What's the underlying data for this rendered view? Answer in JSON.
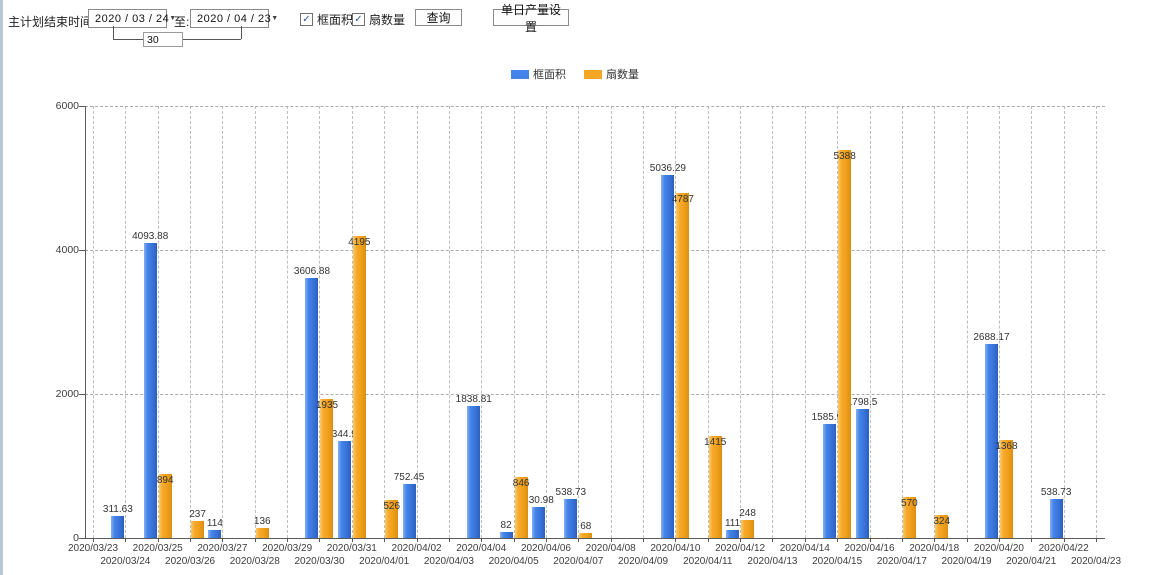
{
  "toolbar": {
    "plan_end_label": "主计划结束时间:",
    "date_from": "2020 / 03 / 24",
    "to_label": "至:",
    "date_to": "2020 / 04 / 23",
    "span_days": "30",
    "filters": [
      {
        "label": "框面积",
        "checked": true
      },
      {
        "label": "扇数量",
        "checked": true
      }
    ],
    "query_button": "查询",
    "daily_output_button": "单日产量设置"
  },
  "legend": {
    "items": [
      {
        "label": "框面积",
        "color": "#4383EA"
      },
      {
        "label": "扇数量",
        "color": "#F5A623"
      }
    ]
  },
  "chart_data": {
    "type": "bar",
    "title": "",
    "xlabel": "",
    "ylabel": "",
    "ylim": [
      0,
      6000
    ],
    "yticks": [
      0,
      2000,
      4000,
      6000
    ],
    "grid": true,
    "legend_position": "top-center",
    "x_label_layout": "staggered-two-rows",
    "categories": [
      "2020/03/23",
      "2020/03/24",
      "2020/03/25",
      "2020/03/26",
      "2020/03/27",
      "2020/03/28",
      "2020/03/29",
      "2020/03/30",
      "2020/03/31",
      "2020/04/01",
      "2020/04/02",
      "2020/04/03",
      "2020/04/04",
      "2020/04/05",
      "2020/04/06",
      "2020/04/07",
      "2020/04/08",
      "2020/04/09",
      "2020/04/10",
      "2020/04/11",
      "2020/04/12",
      "2020/04/13",
      "2020/04/14",
      "2020/04/15",
      "2020/04/16",
      "2020/04/17",
      "2020/04/18",
      "2020/04/19",
      "2020/04/20",
      "2020/04/21",
      "2020/04/22",
      "2020/04/23"
    ],
    "series": [
      {
        "name": "框面积",
        "color": "#4383EA",
        "values": [
          null,
          311.63,
          4093.88,
          null,
          114,
          null,
          null,
          3606.88,
          1344.95,
          null,
          752.45,
          null,
          1838.81,
          82,
          430.98,
          538.73,
          null,
          null,
          5036.29,
          null,
          111,
          null,
          null,
          1585.96,
          1798.5,
          null,
          null,
          null,
          2688.17,
          null,
          538.73,
          null
        ]
      },
      {
        "name": "扇数量",
        "color": "#F5A623",
        "values": [
          null,
          null,
          894,
          237,
          null,
          136,
          null,
          1935,
          4195,
          526,
          null,
          null,
          null,
          846,
          null,
          68,
          null,
          null,
          4787,
          1415,
          248,
          null,
          null,
          5388,
          null,
          570,
          324,
          null,
          1368,
          null,
          null,
          null
        ]
      }
    ]
  }
}
